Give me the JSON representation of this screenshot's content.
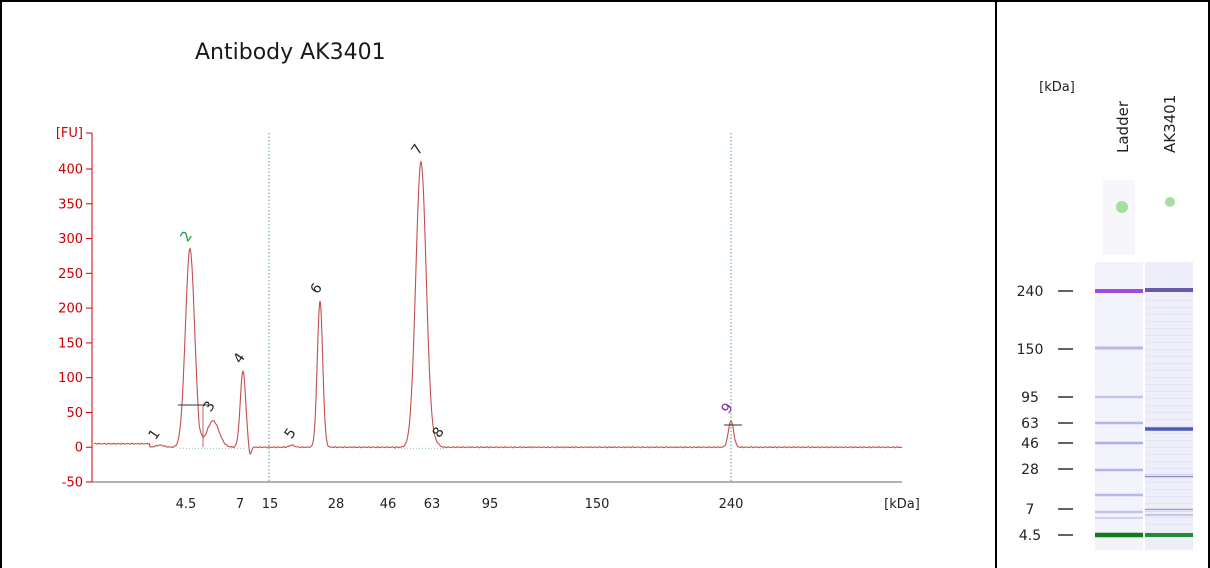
{
  "chart_data": {
    "type": "line",
    "title": "Antibody AK3401",
    "ylabel": "[FU]",
    "xlabel": "[kDa]",
    "ylim": [
      -50,
      400
    ],
    "yticks": [
      -50,
      0,
      50,
      100,
      150,
      200,
      250,
      300,
      350,
      400
    ],
    "x_tick_labels": [
      "4.5",
      "7",
      "15",
      "28",
      "46",
      "63",
      "95",
      "150",
      "240"
    ],
    "reference_lines_at": [
      "15",
      "240"
    ],
    "peaks": [
      {
        "label": "1",
        "height": 3,
        "color": "#222222"
      },
      {
        "label": "2",
        "height": 285,
        "color": "#1f9b3a"
      },
      {
        "label": "3",
        "height": 38,
        "color": "#222222"
      },
      {
        "label": "4",
        "height": 110,
        "color": "#222222"
      },
      {
        "label": "5",
        "height": 3,
        "color": "#222222"
      },
      {
        "label": "6",
        "height": 210,
        "color": "#222222"
      },
      {
        "label": "7",
        "height": 410,
        "color": "#222222"
      },
      {
        "label": "8",
        "height": 5,
        "color": "#222222"
      },
      {
        "label": "9",
        "height": 38,
        "color": "#7a2a9a"
      }
    ],
    "trace_color": "#c0504d",
    "axis_color": "#cc0000",
    "grid": false
  },
  "gel": {
    "unit_label": "[kDa]",
    "marker_labels": [
      "240",
      "150",
      "95",
      "63",
      "46",
      "28",
      "7",
      "4.5"
    ],
    "lanes": [
      "Ladder",
      "AK3401"
    ]
  }
}
